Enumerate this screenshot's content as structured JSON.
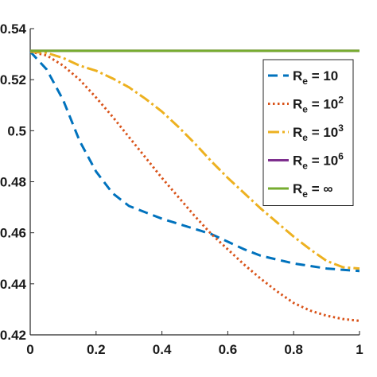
{
  "chart_data": {
    "type": "line",
    "title": "",
    "xlabel": "",
    "ylabel": "",
    "xlim": [
      0,
      1
    ],
    "ylim": [
      0.42,
      0.54
    ],
    "grid": false,
    "legend_placement": "top-right",
    "x_ticks": [
      {
        "value": 0,
        "label": "0"
      },
      {
        "value": 0.2,
        "label": "0.2"
      },
      {
        "value": 0.4,
        "label": "0.4"
      },
      {
        "value": 0.6,
        "label": "0.6"
      },
      {
        "value": 0.8,
        "label": "0.8"
      },
      {
        "value": 1,
        "label": "1"
      }
    ],
    "y_ticks": [
      {
        "value": 0.42,
        "label": "0.42"
      },
      {
        "value": 0.44,
        "label": "0.44"
      },
      {
        "value": 0.46,
        "label": "0.46"
      },
      {
        "value": 0.48,
        "label": "0.48"
      },
      {
        "value": 0.5,
        "label": "0.5"
      },
      {
        "value": 0.52,
        "label": "0.52"
      },
      {
        "value": 0.54,
        "label": "0.54"
      }
    ],
    "series": [
      {
        "name": "R_e = 10",
        "legend_base": "R",
        "legend_sub": "e",
        "legend_rest": " = 10",
        "legend_sup": "",
        "color": "#0072BD",
        "dash": "12,7",
        "x": [
          0,
          0.05,
          0.1,
          0.15,
          0.2,
          0.25,
          0.3,
          0.35,
          0.4,
          0.45,
          0.5,
          0.55,
          0.6,
          0.65,
          0.7,
          0.75,
          0.8,
          0.85,
          0.9,
          0.95,
          1.0
        ],
        "y": [
          0.531,
          0.524,
          0.512,
          0.496,
          0.484,
          0.4755,
          0.4705,
          0.468,
          0.4655,
          0.4635,
          0.4615,
          0.4595,
          0.4565,
          0.4535,
          0.451,
          0.4495,
          0.448,
          0.447,
          0.446,
          0.4455,
          0.445
        ]
      },
      {
        "name": "R_e = 10^2",
        "legend_base": "R",
        "legend_sub": "e",
        "legend_rest": " = 10",
        "legend_sup": "2",
        "color": "#D95319",
        "dash": "2.5,3.5",
        "x": [
          0,
          0.05,
          0.1,
          0.15,
          0.2,
          0.25,
          0.3,
          0.35,
          0.4,
          0.45,
          0.5,
          0.55,
          0.6,
          0.65,
          0.7,
          0.75,
          0.8,
          0.85,
          0.9,
          0.95,
          1.0
        ],
        "y": [
          0.531,
          0.5295,
          0.5255,
          0.52,
          0.513,
          0.5055,
          0.4975,
          0.4895,
          0.4815,
          0.474,
          0.4665,
          0.4595,
          0.4535,
          0.4475,
          0.442,
          0.437,
          0.4325,
          0.4295,
          0.4275,
          0.4262,
          0.4255
        ]
      },
      {
        "name": "R_e = 10^3",
        "legend_base": "R",
        "legend_sub": "e",
        "legend_rest": " = 10",
        "legend_sup": "3",
        "color": "#EDB120",
        "dash": "14,4,3,4",
        "x": [
          0,
          0.05,
          0.1,
          0.15,
          0.2,
          0.25,
          0.3,
          0.35,
          0.4,
          0.45,
          0.5,
          0.55,
          0.6,
          0.65,
          0.7,
          0.75,
          0.8,
          0.85,
          0.9,
          0.95,
          1.0
        ],
        "y": [
          0.531,
          0.5305,
          0.5285,
          0.5255,
          0.5235,
          0.5205,
          0.517,
          0.5125,
          0.5075,
          0.5015,
          0.495,
          0.488,
          0.4815,
          0.4755,
          0.4695,
          0.464,
          0.4585,
          0.4535,
          0.449,
          0.4465,
          0.446
        ]
      },
      {
        "name": "R_e = 10^6",
        "legend_base": "R",
        "legend_sub": "e",
        "legend_rest": " = 10",
        "legend_sup": "6",
        "color": "#7E2F8E",
        "dash": "",
        "x": [
          0,
          1
        ],
        "y": [
          0.5313,
          0.5313
        ]
      },
      {
        "name": "R_e = ∞",
        "legend_base": "R",
        "legend_sub": "e",
        "legend_rest": " = ∞",
        "legend_sup": "",
        "color": "#77AC30",
        "dash": "",
        "x": [
          0,
          1
        ],
        "y": [
          0.5313,
          0.5313
        ]
      }
    ]
  }
}
